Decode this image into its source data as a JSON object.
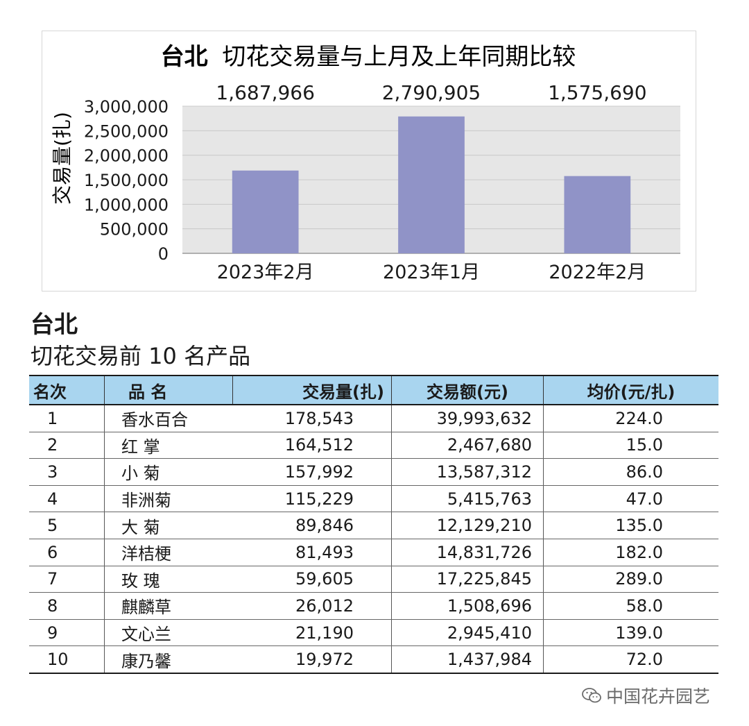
{
  "chart_data": {
    "type": "bar",
    "title": "台北 切花交易量与上月及上年同期比较",
    "title_prefix": "台北",
    "title_rest": "切花交易量与上月及上年同期比较",
    "ylabel": "交易量(扎)",
    "xlabel": "",
    "categories": [
      "2023年2月",
      "2023年1月",
      "2022年2月"
    ],
    "values": [
      1687966,
      2790905,
      1575690
    ],
    "data_labels": [
      "1,687,966",
      "2,790,905",
      "1,575,690"
    ],
    "ylim": [
      0,
      3000000
    ],
    "yticks": [
      0,
      500000,
      1000000,
      1500000,
      2000000,
      2500000,
      3000000
    ],
    "ytick_labels": [
      "0",
      "500,000",
      "1,000,000",
      "1,500,000",
      "2,000,000",
      "2,500,000",
      "3,000,000"
    ],
    "grid": true,
    "bar_color": "#9093c7",
    "plot_bg": "#e6e6e6"
  },
  "section": {
    "title": "台北",
    "subtitle": "切花交易前 10 名产品"
  },
  "table": {
    "headers": {
      "rank": "名次",
      "name": "品 名",
      "volume": "交易量(扎)",
      "amount": "交易额(元)",
      "avg": "均价(元/扎)"
    },
    "rows": [
      {
        "rank": "1",
        "name": "香水百合",
        "volume": "178,543",
        "amount": "39,993,632",
        "avg": "224.0"
      },
      {
        "rank": "2",
        "name": "红 掌",
        "volume": "164,512",
        "amount": "2,467,680",
        "avg": "15.0"
      },
      {
        "rank": "3",
        "name": "小 菊",
        "volume": "157,992",
        "amount": "13,587,312",
        "avg": "86.0"
      },
      {
        "rank": "4",
        "name": "非洲菊",
        "volume": "115,229",
        "amount": "5,415,763",
        "avg": "47.0"
      },
      {
        "rank": "5",
        "name": "大 菊",
        "volume": "89,846",
        "amount": "12,129,210",
        "avg": "135.0"
      },
      {
        "rank": "6",
        "name": "洋桔梗",
        "volume": "81,493",
        "amount": "14,831,726",
        "avg": "182.0"
      },
      {
        "rank": "7",
        "name": "玫 瑰",
        "volume": "59,605",
        "amount": "17,225,845",
        "avg": "289.0"
      },
      {
        "rank": "8",
        "name": "麒麟草",
        "volume": "26,012",
        "amount": "1,508,696",
        "avg": "58.0"
      },
      {
        "rank": "9",
        "name": "文心兰",
        "volume": "21,190",
        "amount": "2,945,410",
        "avg": "139.0"
      },
      {
        "rank": "10",
        "name": "康乃馨",
        "volume": "19,972",
        "amount": "1,437,984",
        "avg": "72.0"
      }
    ]
  },
  "watermark": {
    "text": "中国花卉园艺",
    "icon": "wechat-icon"
  }
}
